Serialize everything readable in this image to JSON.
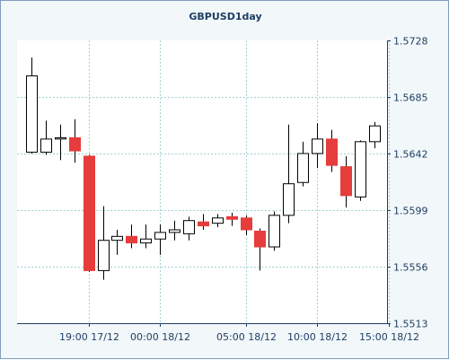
{
  "chart_data": {
    "type": "candlestick",
    "title": "GBPUSD1day",
    "ylim": [
      1.5513,
      1.5728
    ],
    "y_ticks": [
      "1.5728",
      "1.5685",
      "1.5642",
      "1.5599",
      "1.5556",
      "1.5513"
    ],
    "x_ticks": [
      "19:00 17/12",
      "00:00 18/12",
      "05:00 18/12",
      "10:00 18/12",
      "15:00 18/12"
    ],
    "grid": true,
    "colors": {
      "up": "#ffffff",
      "down": "#e63c3c",
      "outline": "#000000",
      "grid": "#9fd3d3"
    },
    "candles": [
      {
        "open": 1.5643,
        "high": 1.5715,
        "low": 1.5642,
        "close": 1.5701
      },
      {
        "open": 1.5643,
        "high": 1.5667,
        "low": 1.5641,
        "close": 1.5653
      },
      {
        "open": 1.5653,
        "high": 1.5664,
        "low": 1.5637,
        "close": 1.5654
      },
      {
        "open": 1.5654,
        "high": 1.5668,
        "low": 1.5635,
        "close": 1.5644
      },
      {
        "open": 1.564,
        "high": 1.5641,
        "low": 1.5552,
        "close": 1.5553
      },
      {
        "open": 1.5553,
        "high": 1.5602,
        "low": 1.5546,
        "close": 1.5576
      },
      {
        "open": 1.5576,
        "high": 1.5584,
        "low": 1.5565,
        "close": 1.5579
      },
      {
        "open": 1.5579,
        "high": 1.5588,
        "low": 1.557,
        "close": 1.5574
      },
      {
        "open": 1.5574,
        "high": 1.5588,
        "low": 1.557,
        "close": 1.5577
      },
      {
        "open": 1.5577,
        "high": 1.5588,
        "low": 1.5565,
        "close": 1.5582
      },
      {
        "open": 1.5582,
        "high": 1.5591,
        "low": 1.5576,
        "close": 1.5584
      },
      {
        "open": 1.5581,
        "high": 1.5594,
        "low": 1.5576,
        "close": 1.5591
      },
      {
        "open": 1.559,
        "high": 1.5596,
        "low": 1.5584,
        "close": 1.5587
      },
      {
        "open": 1.5589,
        "high": 1.5596,
        "low": 1.5586,
        "close": 1.5593
      },
      {
        "open": 1.5594,
        "high": 1.5597,
        "low": 1.5587,
        "close": 1.5592
      },
      {
        "open": 1.5593,
        "high": 1.5595,
        "low": 1.558,
        "close": 1.5584
      },
      {
        "open": 1.5583,
        "high": 1.5585,
        "low": 1.5553,
        "close": 1.5571
      },
      {
        "open": 1.5571,
        "high": 1.5598,
        "low": 1.5568,
        "close": 1.5595
      },
      {
        "open": 1.5595,
        "high": 1.5664,
        "low": 1.5589,
        "close": 1.5619
      },
      {
        "open": 1.562,
        "high": 1.5651,
        "low": 1.5617,
        "close": 1.5642
      },
      {
        "open": 1.5642,
        "high": 1.5665,
        "low": 1.5631,
        "close": 1.5653
      },
      {
        "open": 1.5653,
        "high": 1.566,
        "low": 1.5628,
        "close": 1.5633
      },
      {
        "open": 1.5632,
        "high": 1.564,
        "low": 1.5601,
        "close": 1.561
      },
      {
        "open": 1.5609,
        "high": 1.5652,
        "low": 1.5606,
        "close": 1.5651
      },
      {
        "open": 1.5651,
        "high": 1.5666,
        "low": 1.5646,
        "close": 1.5663
      }
    ]
  }
}
